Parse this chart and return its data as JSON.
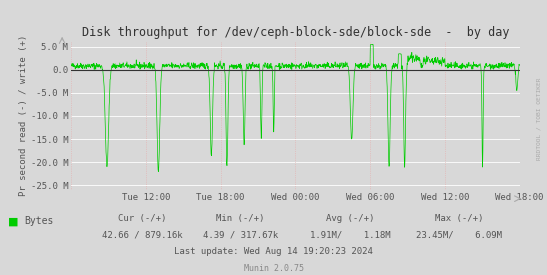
{
  "title": "Disk throughput for /dev/ceph-block-sde/block-sde  -  by day",
  "ylabel": "Pr second read (-) / write (+)",
  "background_color": "#d8d8d8",
  "plot_bg_color": "#d8d8d8",
  "grid_color_h": "#ffffff",
  "grid_color_v": "#e8aaaa",
  "line_color": "#00cc00",
  "zero_line_color": "#333333",
  "ylim": [
    -26000000,
    6200000
  ],
  "yticks": [
    5000000,
    0,
    -5000000,
    -10000000,
    -15000000,
    -20000000,
    -25000000
  ],
  "ytick_labels": [
    "5.0 M",
    "0.0",
    "-5.0 M",
    "-10.0 M",
    "-15.0 M",
    "-20.0 M",
    "-25.0 M"
  ],
  "xtick_labels": [
    "Tue 12:00",
    "Tue 18:00",
    "Wed 00:00",
    "Wed 06:00",
    "Wed 12:00",
    "Wed 18:00"
  ],
  "title_color": "#333333",
  "axis_color": "#555555",
  "legend_label": "Bytes",
  "legend_color": "#00cc00",
  "cur_label": "Cur (-/+)",
  "cur_val": "42.66 / 879.16k",
  "min_label": "Min (-/+)",
  "min_val": "4.39 / 317.67k",
  "avg_label": "Avg (-/+)",
  "avg_val": "1.91M/    1.18M",
  "max_label": "Max (-/+)",
  "max_val": "23.45M/    6.09M",
  "last_update": "Last update: Wed Aug 14 19:20:23 2024",
  "munin_version": "Munin 2.0.75",
  "watermark": "RRDTOOL / TOBI OETIKER"
}
